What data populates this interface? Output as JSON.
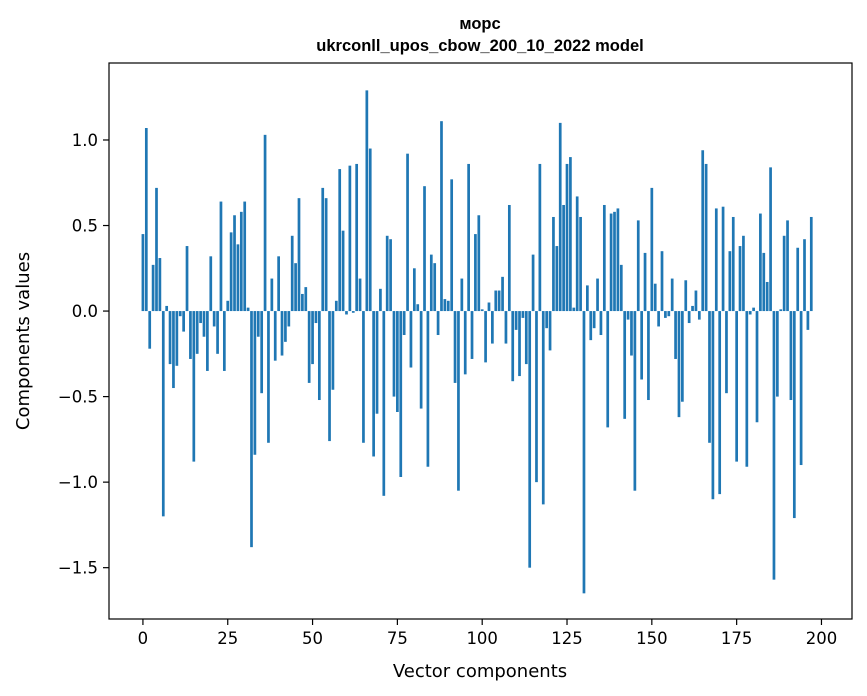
{
  "chart_data": {
    "type": "bar",
    "title": "морс",
    "subtitle": "ukrconll_upos_cbow_200_10_2022 model",
    "xlabel": "Vector components",
    "ylabel": "Components values",
    "xlim": [
      -10,
      209
    ],
    "ylim": [
      -1.8,
      1.45
    ],
    "xticks": [
      0,
      25,
      50,
      75,
      100,
      125,
      150,
      175,
      200
    ],
    "yticks": [
      -1.5,
      -1.0,
      -0.5,
      0.0,
      0.5,
      1.0
    ],
    "ytick_labels": [
      "−1.5",
      "−1.0",
      "−0.5",
      "0.0",
      "0.5",
      "1.0"
    ],
    "color": "#1f77b4",
    "grid": false,
    "legend": "none",
    "values": [
      0.45,
      1.07,
      -0.22,
      0.27,
      0.72,
      0.31,
      -1.2,
      0.03,
      -0.31,
      -0.45,
      -0.32,
      -0.03,
      -0.12,
      0.38,
      -0.28,
      -0.88,
      -0.25,
      -0.07,
      -0.15,
      -0.35,
      0.32,
      -0.09,
      -0.25,
      0.64,
      -0.35,
      0.06,
      0.46,
      0.56,
      0.39,
      0.58,
      0.64,
      0.02,
      -1.38,
      -0.84,
      -0.15,
      -0.48,
      1.03,
      -0.77,
      0.19,
      -0.29,
      0.32,
      -0.26,
      -0.18,
      -0.09,
      0.44,
      0.28,
      0.66,
      0.1,
      0.14,
      -0.42,
      -0.31,
      -0.07,
      -0.52,
      0.72,
      0.66,
      -0.76,
      -0.46,
      0.06,
      0.83,
      0.47,
      -0.02,
      0.85,
      -0.01,
      0.86,
      0.19,
      -0.77,
      1.29,
      0.95,
      -0.85,
      -0.6,
      0.13,
      -1.08,
      0.44,
      0.42,
      -0.5,
      -0.59,
      -0.97,
      -0.14,
      0.92,
      -0.33,
      0.25,
      0.04,
      -0.57,
      0.73,
      -0.91,
      0.33,
      0.28,
      -0.14,
      1.11,
      0.07,
      0.06,
      0.77,
      -0.42,
      -1.05,
      0.19,
      -0.37,
      0.86,
      -0.28,
      0.45,
      0.56,
      0.01,
      -0.3,
      0.05,
      -0.19,
      0.12,
      0.12,
      0.2,
      -0.19,
      0.62,
      -0.41,
      -0.11,
      -0.38,
      -0.04,
      -0.31,
      -1.5,
      0.33,
      -1.0,
      0.86,
      -1.13,
      -0.1,
      -0.23,
      0.55,
      0.38,
      1.1,
      0.62,
      0.86,
      0.9,
      0.02,
      0.67,
      0.55,
      -1.65,
      0.15,
      -0.17,
      -0.1,
      0.19,
      -0.14,
      0.62,
      -0.68,
      0.57,
      0.58,
      0.6,
      0.27,
      -0.63,
      -0.05,
      -0.26,
      -1.05,
      0.53,
      -0.4,
      0.34,
      -0.52,
      0.72,
      0.16,
      -0.09,
      0.35,
      -0.04,
      -0.03,
      0.19,
      -0.28,
      -0.62,
      -0.53,
      0.18,
      -0.07,
      0.03,
      0.12,
      -0.05,
      0.94,
      0.86,
      -0.77,
      -1.1,
      0.6,
      -1.07,
      0.61,
      -0.48,
      0.35,
      0.55,
      -0.88,
      0.38,
      0.44,
      -0.91,
      -0.02,
      0.02,
      -0.65,
      0.57,
      0.34,
      0.17,
      0.84,
      -1.57,
      -0.5,
      0.01,
      0.44,
      0.53,
      -0.52,
      -1.21,
      0.37,
      -0.9,
      0.42,
      -0.11,
      0.55
    ]
  }
}
